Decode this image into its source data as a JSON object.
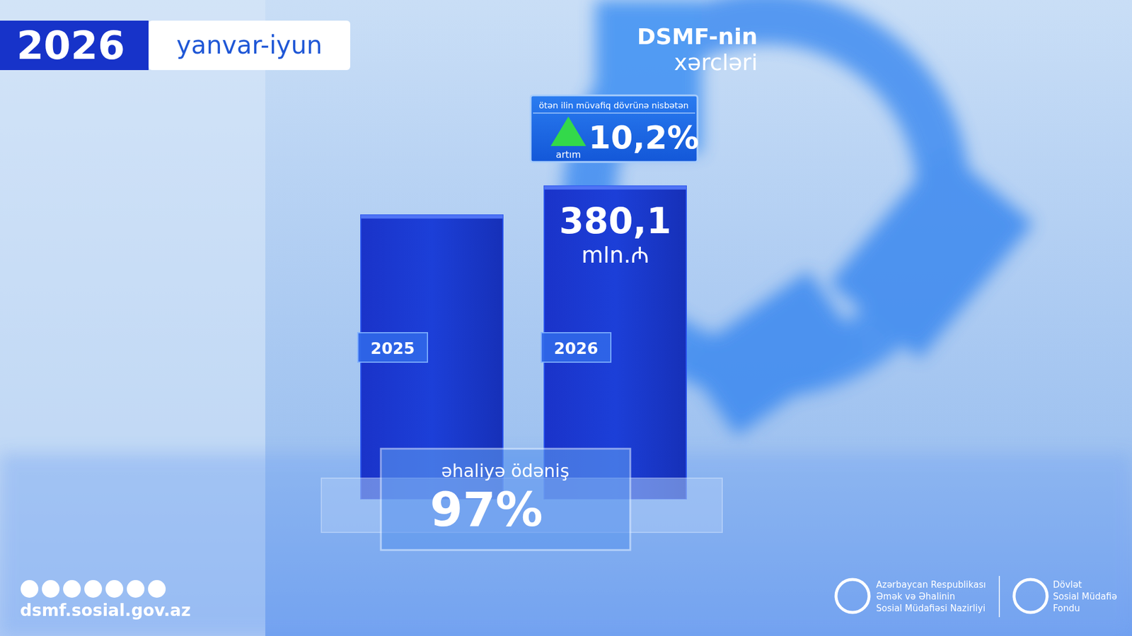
{
  "chart_data": {
    "type": "bar",
    "title": "DSMF-nin xərcləri",
    "period_year": "2026",
    "period": "yanvar-iyun",
    "categories": [
      "2025",
      "2026"
    ],
    "values": [
      344.9,
      380.1
    ],
    "value_labels": [
      null,
      "380,1"
    ],
    "unit": "mln.₼",
    "color": "#1c3fd8",
    "ylim": [
      0,
      400
    ],
    "tick_labels": false,
    "grid": false,
    "data_labels": true,
    "annotations": [
      {
        "caption": "ötən ilin müvafiq dövrünə nisbətən",
        "label": "artım",
        "text": "10,2%"
      },
      {
        "label": "əhaliyə ödəniş",
        "text": "97%"
      }
    ],
    "footer": {
      "url": "dsmf.sosial.gov.az",
      "ministry_lines": [
        "Azərbaycan Respublikası",
        "Əmək və Əhalinin",
        "Sosial Müdafiəsi Nazirliyi"
      ],
      "fund_lines": [
        "Dövlət",
        "Sosial Müdafiə",
        "Fondu"
      ]
    }
  }
}
